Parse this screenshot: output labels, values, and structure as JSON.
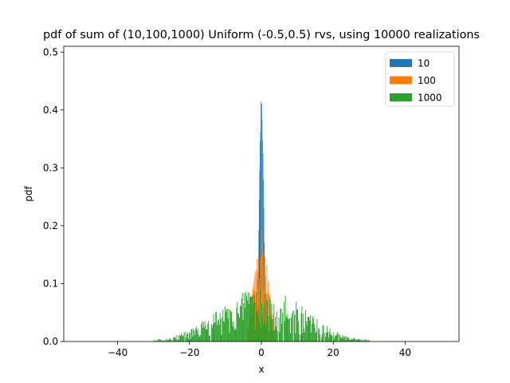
{
  "chart_data": {
    "type": "histogram",
    "title": "pdf of sum of (10,100,1000) Uniform (-0.5,0.5) rvs, using 10000 realizations",
    "xlabel": "x",
    "ylabel": "pdf",
    "xlim": [
      -55,
      55
    ],
    "ylim": [
      0,
      0.51
    ],
    "xticks": [
      -40,
      -20,
      0,
      20,
      40
    ],
    "yticks": [
      0.0,
      0.1,
      0.2,
      0.3,
      0.4,
      0.5
    ],
    "xtick_labels": [
      "−40",
      "−20",
      "0",
      "20",
      "40"
    ],
    "ytick_labels": [
      "0.0",
      "0.1",
      "0.2",
      "0.3",
      "0.4",
      "0.5"
    ],
    "grid": false,
    "legend_position": "top-right",
    "series": [
      {
        "name": "10",
        "color": "#1f77b4",
        "x": [
          -1.4,
          -1.2,
          -1.0,
          -0.8,
          -0.6,
          -0.4,
          -0.2,
          0.0,
          0.2,
          0.4,
          0.6,
          0.8,
          1.0,
          1.2,
          1.4
        ],
        "values": [
          0.02,
          0.05,
          0.1,
          0.17,
          0.26,
          0.33,
          0.39,
          0.43,
          0.4,
          0.34,
          0.27,
          0.18,
          0.1,
          0.05,
          0.02
        ]
      },
      {
        "name": "100",
        "color": "#ff7f0e",
        "x": [
          -4.0,
          -3.5,
          -3.0,
          -2.5,
          -2.0,
          -1.5,
          -1.0,
          -0.5,
          0.0,
          0.5,
          1.0,
          1.5,
          2.0,
          2.5,
          3.0,
          3.5,
          4.0
        ],
        "values": [
          0.01,
          0.03,
          0.05,
          0.07,
          0.09,
          0.1,
          0.11,
          0.12,
          0.15,
          0.12,
          0.11,
          0.1,
          0.09,
          0.07,
          0.05,
          0.03,
          0.01
        ]
      },
      {
        "name": "1000",
        "color": "#2ca02c",
        "x": [
          -30,
          -25,
          -20,
          -15,
          -10,
          -5,
          0,
          5,
          10,
          15,
          20,
          25,
          30
        ],
        "values": [
          0.002,
          0.004,
          0.012,
          0.025,
          0.04,
          0.05,
          0.055,
          0.05,
          0.04,
          0.025,
          0.012,
          0.004,
          0.002
        ]
      }
    ]
  }
}
